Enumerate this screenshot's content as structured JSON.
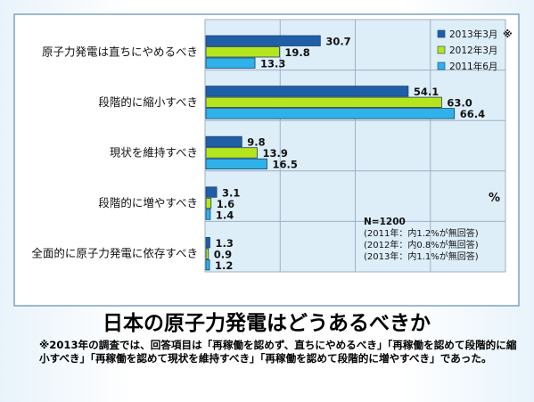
{
  "chart_data": {
    "type": "bar",
    "orientation": "horizontal",
    "title": "日本の原子力発電はどうあるべきか",
    "categories": [
      "原子力発電は直ちにやめるべき",
      "段階的に縮小すべき",
      "現状を維持すべき",
      "段階的に増やすべき",
      "全面的に原子力発電に依存すべき"
    ],
    "series": [
      {
        "name": "2013年3月",
        "values": [
          30.7,
          54.1,
          9.8,
          3.1,
          1.3
        ],
        "color": "#1f5fa8"
      },
      {
        "name": "2012年3月",
        "values": [
          19.8,
          63.0,
          13.9,
          1.6,
          0.9
        ],
        "color": "#b5e61d"
      },
      {
        "name": "2011年6月",
        "values": [
          13.3,
          66.4,
          16.5,
          1.4,
          1.2
        ],
        "color": "#2fb2ea"
      }
    ],
    "value_labels": [
      [
        "30.7",
        "54.1",
        "9.8",
        "3.1",
        "1.3"
      ],
      [
        "19.8",
        "63.0",
        "13.9",
        "1.6",
        "0.9"
      ],
      [
        "13.3",
        "66.4",
        "16.5",
        "1.4",
        "1.2"
      ]
    ],
    "xlim": [
      0,
      80
    ],
    "legend_position": "top-right",
    "legend_mark": "※",
    "unit": "%",
    "notes": [
      "N=1200",
      "(2011年：内1.2%が無回答)",
      "(2012年：内0.8%が無回答)",
      "(2013年：内1.1%が無回答)"
    ],
    "colors": {
      "plot_background": "#ddeef9",
      "grid": "#9db0c4",
      "frame_border": "#7ba3c8"
    }
  },
  "footnote": "※2013年の調査では、回答項目は「再稼働を認めず、直ちにやめるべき」「再稼働を認めて段階的に縮小すべき」「再稼働を認めて現状を維持すべき」「再稼働を認めて段階的に増やすべき」であった。"
}
